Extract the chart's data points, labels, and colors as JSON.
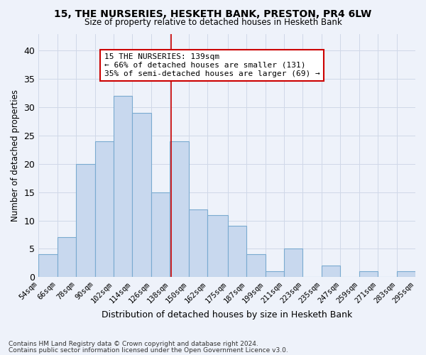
{
  "title1": "15, THE NURSERIES, HESKETH BANK, PRESTON, PR4 6LW",
  "title2": "Size of property relative to detached houses in Hesketh Bank",
  "xlabel": "Distribution of detached houses by size in Hesketh Bank",
  "ylabel": "Number of detached properties",
  "footnote1": "Contains HM Land Registry data © Crown copyright and database right 2024.",
  "footnote2": "Contains public sector information licensed under the Open Government Licence v3.0.",
  "bin_edges": [
    54,
    66,
    78,
    90,
    102,
    114,
    126,
    138,
    150,
    162,
    175,
    187,
    199,
    211,
    223,
    235,
    247,
    259,
    271,
    283,
    295
  ],
  "bin_labels": [
    "54sqm",
    "66sqm",
    "78sqm",
    "90sqm",
    "102sqm",
    "114sqm",
    "126sqm",
    "138sqm",
    "150sqm",
    "162sqm",
    "175sqm",
    "187sqm",
    "199sqm",
    "211sqm",
    "223sqm",
    "235sqm",
    "247sqm",
    "259sqm",
    "271sqm",
    "283sqm",
    "295sqm"
  ],
  "values": [
    4,
    7,
    20,
    24,
    32,
    29,
    15,
    24,
    12,
    11,
    9,
    4,
    1,
    5,
    0,
    2,
    0,
    1,
    0,
    1
  ],
  "bar_color": "#c8d8ee",
  "bar_edge_color": "#7aaad0",
  "property_line_x": 139,
  "annotation_line1": "15 THE NURSERIES: 139sqm",
  "annotation_line2": "← 66% of detached houses are smaller (131)",
  "annotation_line3": "35% of semi-detached houses are larger (69) →",
  "annotation_box_color": "#ffffff",
  "annotation_box_edge": "#cc0000",
  "vline_color": "#cc0000",
  "background_color": "#eef2fa",
  "grid_color": "#d0d8e8",
  "ylim": [
    0,
    43
  ],
  "yticks": [
    0,
    5,
    10,
    15,
    20,
    25,
    30,
    35,
    40
  ]
}
